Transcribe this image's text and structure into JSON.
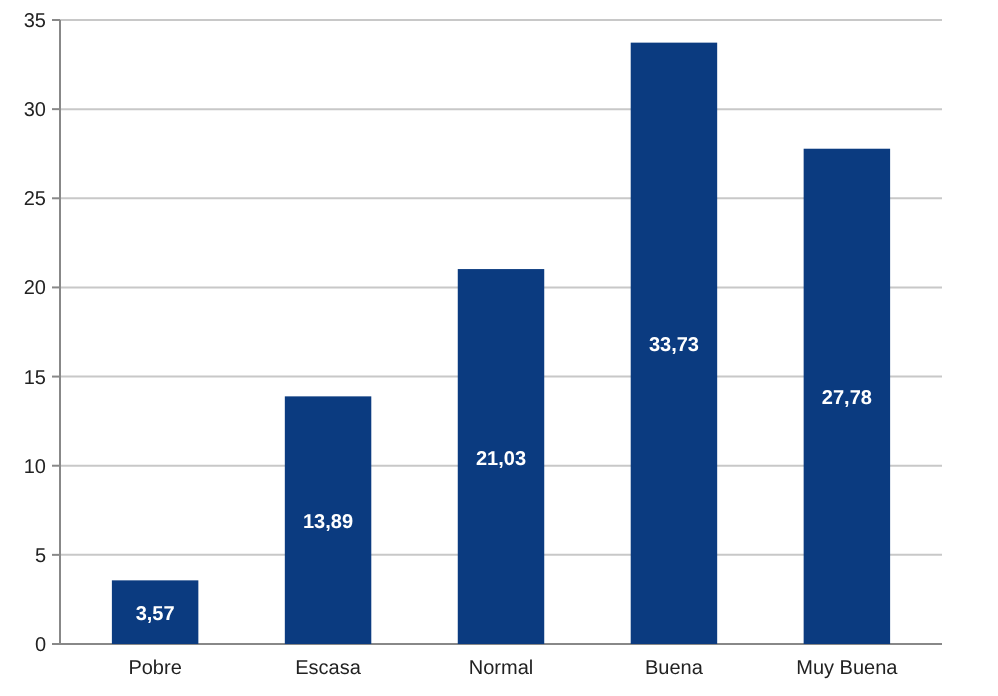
{
  "chart_data": {
    "type": "bar",
    "categories": [
      "Pobre",
      "Escasa",
      "Normal",
      "Buena",
      "Muy Buena"
    ],
    "values": [
      3.57,
      13.89,
      21.03,
      33.73,
      27.78
    ],
    "value_labels": [
      "3,57",
      "13,89",
      "21,03",
      "33,73",
      "27,78"
    ],
    "color": "#0b3b80",
    "ylim": [
      0,
      35
    ],
    "yticks": [
      0,
      5,
      10,
      15,
      20,
      25,
      30,
      35
    ],
    "grid": "y"
  }
}
